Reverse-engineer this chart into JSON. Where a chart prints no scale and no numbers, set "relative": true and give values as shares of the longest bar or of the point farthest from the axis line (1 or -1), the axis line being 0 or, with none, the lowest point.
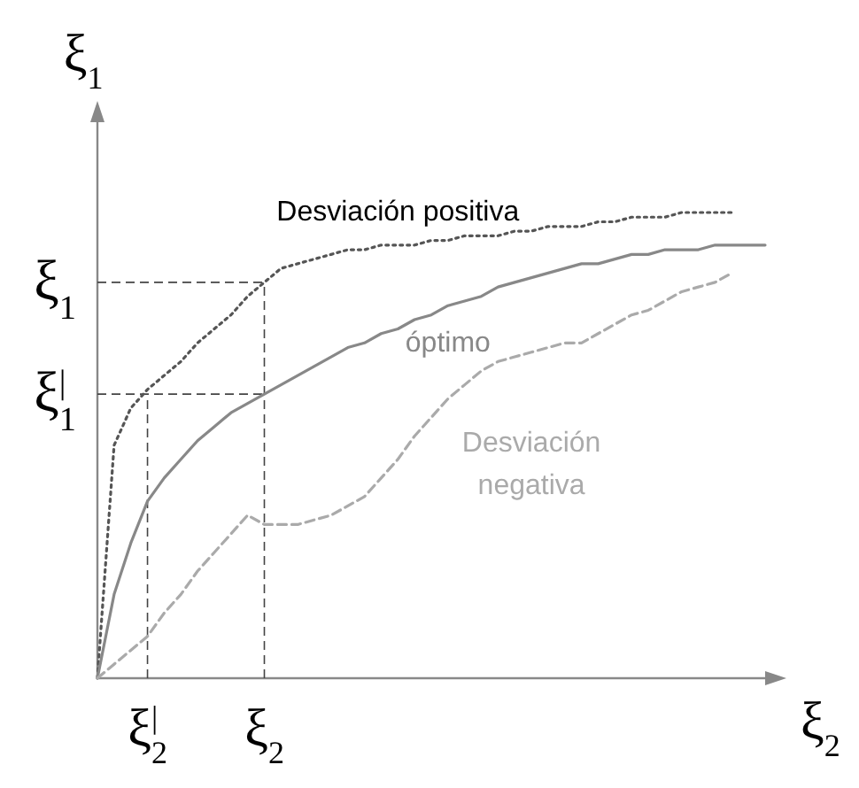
{
  "chart_data": {
    "type": "line",
    "relative": true,
    "tick_labels": "x",
    "xlabel": "ξ$_{2}$",
    "ylabel": "ξ$_{1}$",
    "marker": "none",
    "categories": [
      null,
      null,
      null,
      "ξ$^{|}$$_{2}$",
      null,
      null,
      null,
      null,
      null,
      null,
      "ξ$_{2}$",
      null,
      null,
      null,
      null,
      null,
      null,
      null,
      null,
      null,
      null,
      null,
      null,
      null,
      null,
      null,
      null,
      null,
      null,
      null,
      null,
      null,
      null,
      null,
      null,
      null,
      null,
      null,
      null,
      null,
      null
    ],
    "series": [
      {
        "name": "Desviación positiva",
        "color": "#555555",
        "line_style": "dotted",
        "values": [
          0,
          0.5,
          0.58,
          0.62,
          0.65,
          0.68,
          0.72,
          0.75,
          0.78,
          0.82,
          0.85,
          0.88,
          0.89,
          0.9,
          0.91,
          0.92,
          0.92,
          0.93,
          0.93,
          0.93,
          0.94,
          0.94,
          0.95,
          0.95,
          0.95,
          0.96,
          0.96,
          0.97,
          0.97,
          0.97,
          0.98,
          0.98,
          0.99,
          0.99,
          0.99,
          1,
          1,
          1,
          1,
          null,
          null
        ]
      },
      {
        "name": "óptimo",
        "color": "#888888",
        "line_style": "solid",
        "values": [
          0,
          0.18,
          0.29,
          0.38,
          0.43,
          0.47,
          0.51,
          0.54,
          0.57,
          0.59,
          0.61,
          0.63,
          0.65,
          0.67,
          0.69,
          0.71,
          0.72,
          0.74,
          0.75,
          0.77,
          0.78,
          0.8,
          0.81,
          0.82,
          0.84,
          0.85,
          0.86,
          0.87,
          0.88,
          0.89,
          0.89,
          0.9,
          0.91,
          0.91,
          0.92,
          0.92,
          0.92,
          0.93,
          0.93,
          0.93,
          0.93
        ]
      },
      {
        "name": "Desviación negativa",
        "color": "#aaaaaa",
        "line_style": "dashed",
        "values": [
          0,
          0.03,
          0.06,
          0.09,
          0.14,
          0.18,
          0.23,
          0.27,
          0.31,
          0.35,
          0.33,
          0.33,
          0.33,
          0.34,
          0.35,
          0.37,
          0.39,
          0.43,
          0.47,
          0.52,
          0.56,
          0.6,
          0.63,
          0.66,
          0.68,
          0.69,
          0.7,
          0.71,
          0.72,
          0.72,
          0.74,
          0.76,
          0.78,
          0.79,
          0.81,
          0.83,
          0.84,
          0.85,
          0.87,
          null,
          null
        ]
      }
    ],
    "ref_lines": [
      {
        "axis": "y",
        "value": 0.85,
        "label": "ξ$_{1}$",
        "line_style": "dashed"
      },
      {
        "axis": "y",
        "value": 0.61,
        "label": "ξ$^{|}$$_{1}$",
        "line_style": "dashed"
      },
      {
        "axis": "x",
        "value": "ξ$^{|}$$_{2}$",
        "line_style": "dashed"
      },
      {
        "axis": "x",
        "value": "ξ$_{2}$",
        "line_style": "dashed"
      }
    ]
  }
}
